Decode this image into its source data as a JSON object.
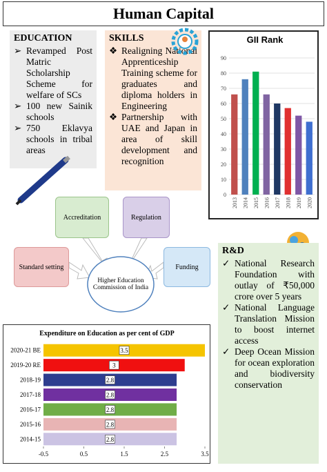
{
  "title": "Human Capital",
  "education": {
    "heading": "EDUCATION",
    "items": [
      "Revamped Post Matric Scholarship Scheme for welfare of SCs",
      "100 new Sainik schools",
      "750 Eklavya schools in tribal areas"
    ]
  },
  "skills": {
    "heading": "SKILLS",
    "items": [
      "Realigning National Apprenticeship Training scheme for graduates and diploma holders in Engineering",
      "Partnership with UAE and Japan in area of skill development and recognition"
    ]
  },
  "diagram": {
    "center": "Higher Education Commission of India",
    "nodes": [
      "Accreditation",
      "Regulation",
      "Standard setting",
      "Funding"
    ]
  },
  "rnd": {
    "heading": "R&D",
    "items": [
      "National Research Foundation with outlay of ₹50,000 crore over 5 years",
      "National Language Translation Mission to boost internet access",
      "Deep Ocean Mission for ocean exploration and biodiversity conservation"
    ]
  },
  "chart_data": [
    {
      "type": "bar",
      "title": "GII Rank",
      "categories": [
        "2013",
        "2014",
        "2015",
        "2016",
        "2017",
        "2018",
        "2019",
        "2020"
      ],
      "values": [
        66,
        76,
        81,
        66,
        60,
        57,
        52,
        48
      ],
      "colors": [
        "#c0504d",
        "#4f81bd",
        "#00b050",
        "#8064a2",
        "#1f3864",
        "#e03030",
        "#7e57a6",
        "#3f6fd0"
      ],
      "ylim": [
        0,
        90
      ],
      "yticks": [
        0,
        10,
        20,
        30,
        40,
        50,
        60,
        70,
        80,
        90
      ],
      "grid": true
    },
    {
      "type": "hbar",
      "title": "Expenditure on Education as per cent of GDP",
      "categories": [
        "2020-21 BE",
        "2019-20 RE",
        "2018-19",
        "2017-18",
        "2016-17",
        "2015-16",
        "2014-15"
      ],
      "values": [
        3.5,
        3,
        2.8,
        2.8,
        2.8,
        2.8,
        2.8
      ],
      "colors": [
        "#f5c400",
        "#f01010",
        "#2e3d8f",
        "#7030a0",
        "#70ad47",
        "#e8b4b4",
        "#cbc3e3"
      ],
      "xlim": [
        -0.5,
        3.5
      ],
      "xticks": [
        -0.5,
        0.5,
        1.5,
        2.5,
        3.5
      ]
    }
  ]
}
